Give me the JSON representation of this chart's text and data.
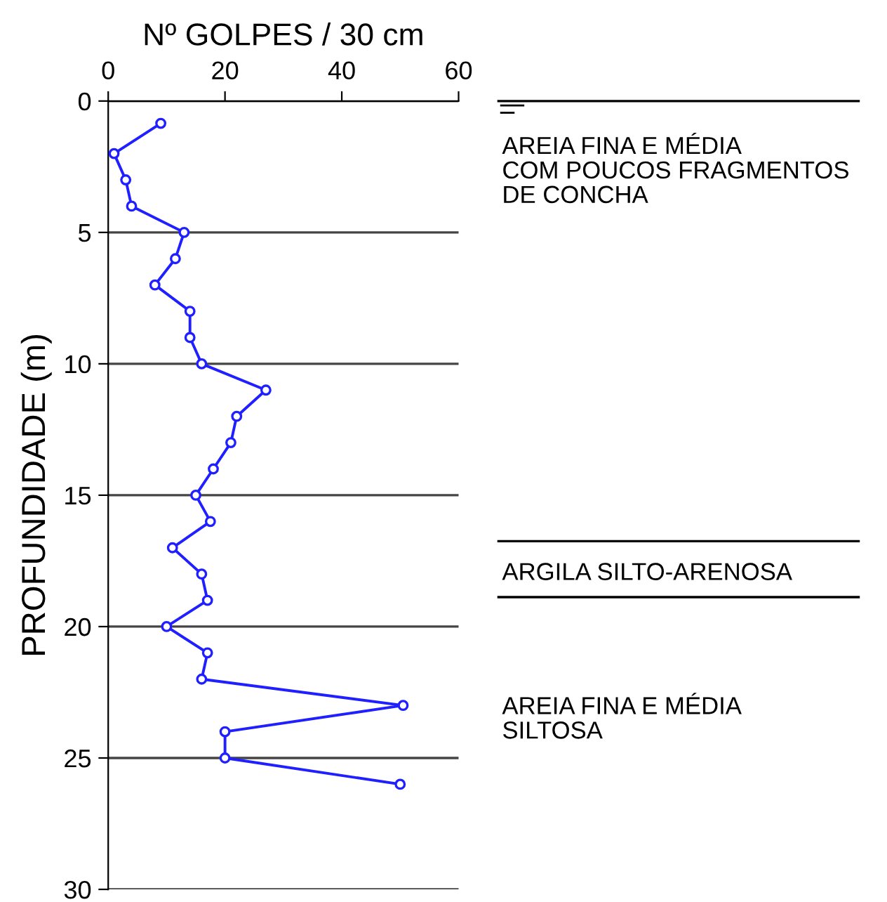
{
  "chart_data": {
    "type": "line",
    "xlabel": "Nº GOLPES / 30 cm",
    "ylabel": "PROFUNDIDADE (m)",
    "x": [
      9,
      1,
      3,
      4,
      13,
      11.5,
      8,
      14,
      14,
      16,
      27,
      22,
      21,
      18,
      15,
      17.5,
      11,
      16,
      17,
      10,
      17,
      16,
      50.5,
      20,
      20,
      50
    ],
    "series": [
      {
        "color": "#1f1fff",
        "values": [
          0.85,
          2,
          3,
          4,
          5,
          6,
          7,
          8,
          9,
          10,
          11,
          12,
          13,
          14,
          15,
          16,
          17,
          18,
          19,
          20,
          21,
          22,
          23,
          24,
          25,
          26
        ]
      }
    ],
    "xlim": [
      0,
      60
    ],
    "xticks": [
      0,
      20,
      40,
      60
    ],
    "ylim": [
      30,
      0
    ],
    "yticks": [
      0,
      5,
      10,
      15,
      20,
      25,
      30
    ],
    "grid": "y",
    "marker": "circle",
    "line_style": "solid",
    "annotations": [
      "AREIA FINA E MÉDIA\nCOM POUCOS FRAGMENTOS\nDE CONCHA",
      "ARGILA SILTO-ARENOSA",
      "AREIA FINA E MÉDIA\nSILTOSA"
    ]
  }
}
